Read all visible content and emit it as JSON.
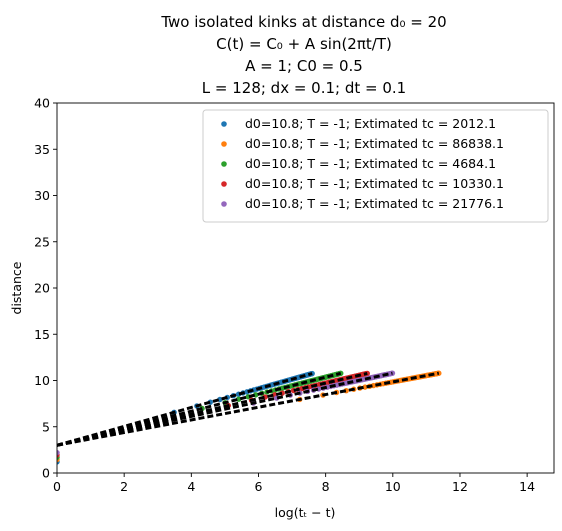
{
  "chart_data": {
    "type": "scatter",
    "title_lines": [
      "Two isolated kinks at distance d₀ = 20",
      "C(t) = C₀ + A sin(2πt/T)",
      "A = 1; C0 = 0.5",
      "L = 128; dx = 0.1; dt = 0.1"
    ],
    "xlabel": "log(tₜ − t)",
    "ylabel": "distance",
    "xlim": [
      0,
      14.8
    ],
    "ylim": [
      0,
      40
    ],
    "xticks": [
      "0",
      "2",
      "4",
      "6",
      "8",
      "10",
      "12",
      "14"
    ],
    "yticks": [
      "0",
      "5",
      "10",
      "15",
      "20",
      "25",
      "30",
      "35",
      "40"
    ],
    "grid": false,
    "legend_position": "top-right",
    "fit_line_color": "#000000",
    "series": [
      {
        "name": "d0=10.8; T = -1;  Extimated tc = 2012.1",
        "color": "#1f77b4",
        "x_end": 7.6,
        "slope": 1.02,
        "intercept": 3.0
      },
      {
        "name": "d0=10.8; T = -1;  Extimated tc = 86838.1",
        "color": "#ff7f0e",
        "x_end": 11.37,
        "slope": 0.685,
        "intercept": 3.0
      },
      {
        "name": "d0=10.8; T = -1;  Extimated tc = 4684.1",
        "color": "#2ca02c",
        "x_end": 8.45,
        "slope": 0.92,
        "intercept": 3.0
      },
      {
        "name": "d0=10.8; T = -1;  Extimated tc = 10330.1",
        "color": "#d62728",
        "x_end": 9.24,
        "slope": 0.84,
        "intercept": 3.0
      },
      {
        "name": "d0=10.8; T = -1;  Extimated tc = 21776.1",
        "color": "#9467bd",
        "x_end": 9.99,
        "slope": 0.78,
        "intercept": 3.0
      }
    ]
  }
}
